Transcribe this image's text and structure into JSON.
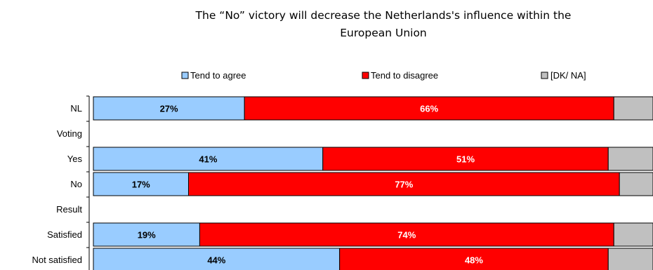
{
  "chart_data": {
    "type": "bar",
    "orientation": "horizontal",
    "stacked": true,
    "title_lines": [
      "The “No” victory will decrease the Netherlands's influence within the",
      "European Union"
    ],
    "legend_position": "top",
    "categories": [
      "NL",
      "Voting",
      "Yes",
      "No",
      "Result",
      "Satisfied",
      "Not satisfied"
    ],
    "series": [
      {
        "name": "Tend to agree",
        "color": "#99ccff",
        "label_color": "#000000",
        "values": [
          27,
          null,
          41,
          17,
          null,
          19,
          44
        ],
        "labels": [
          "27%",
          "",
          "41%",
          "17%",
          "",
          "19%",
          "44%"
        ]
      },
      {
        "name": "Tend to disagree",
        "color": "#ff0000",
        "label_color": "#ffffff",
        "values": [
          66,
          null,
          51,
          77,
          null,
          74,
          48
        ],
        "labels": [
          "66%",
          "",
          "51%",
          "77%",
          "",
          "74%",
          "48%"
        ]
      },
      {
        "name": "[DK/ NA]",
        "color": "#c0c0c0",
        "label_color": "#000000",
        "values": [
          7,
          null,
          8,
          6,
          null,
          7,
          8
        ],
        "labels": [
          "",
          "",
          "",
          "",
          "",
          "",
          ""
        ]
      }
    ],
    "xlim": [
      0,
      100
    ],
    "grid": false
  }
}
